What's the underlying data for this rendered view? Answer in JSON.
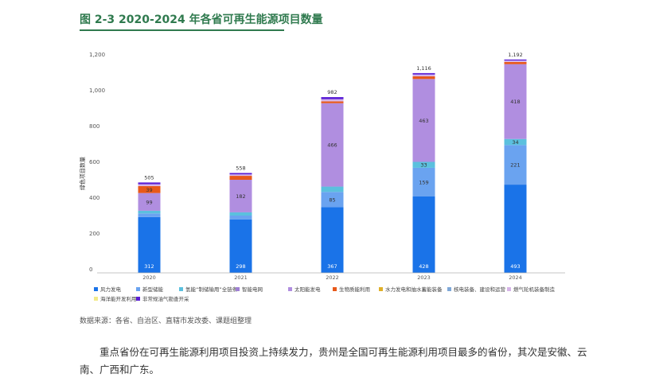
{
  "figure": {
    "title": "图 2-3 2020-2024 年各省可再生能源项目数量",
    "source": "数据来源：各省、自治区、直辖市发改委、课题组整理"
  },
  "body_text": "重点省份在可再生能源利用项目投资上持续发力，贵州是全国可再生能源利用项目最多的省份，其次是安徽、云南、广西和广东。",
  "colors": {
    "wind": "#1a73e8",
    "storage": "#6aa3f0",
    "hydrogen": "#5bc0de",
    "smart_grid": "#9f7fd4",
    "solar": "#b08ee0",
    "biomass": "#e8591a",
    "hydro": "#e0b02a",
    "nuclear": "#7fa8d8",
    "gas_turbine": "#d6b4e8",
    "ocean": "#f2ea8a",
    "unconventional": "#5b1fd6",
    "axis_text": "#555555"
  },
  "chart_data": {
    "type": "bar",
    "stacked": true,
    "categories": [
      "2020",
      "2021",
      "2022",
      "2023",
      "2024"
    ],
    "ylabel": "绿色项目数量",
    "ylim": [
      0,
      1200
    ],
    "yticks": [
      0,
      200,
      400,
      600,
      800,
      1000,
      1200
    ],
    "ytick_labels": [
      "0",
      "200",
      "400",
      "600",
      "800",
      "1,000",
      "1,200"
    ],
    "grid": false,
    "legend": "bottom",
    "totals": [
      505,
      558,
      982,
      1116,
      1192
    ],
    "total_labels": [
      "505",
      "558",
      "982",
      "1,116",
      "1,192"
    ],
    "series": [
      {
        "name": "风力发电",
        "color_key": "wind",
        "values": [
          312,
          298,
          367,
          428,
          493
        ],
        "show_labels": true,
        "label_color": "#ffffff"
      },
      {
        "name": "新型储能",
        "color_key": "storage",
        "values": [
          20,
          22,
          85,
          159,
          221
        ],
        "show_labels": [
          false,
          false,
          true,
          true,
          true
        ],
        "label_color": "#333333"
      },
      {
        "name": "氢能“制储输用”全链条",
        "color_key": "hydrogen",
        "values": [
          15,
          18,
          30,
          33,
          34
        ],
        "show_labels": [
          false,
          false,
          false,
          true,
          true
        ],
        "label_color": "#333333"
      },
      {
        "name": "智能电网",
        "color_key": "smart_grid",
        "values": [
          0,
          0,
          0,
          0,
          0
        ],
        "show_labels": false,
        "label_color": "#333333"
      },
      {
        "name": "太阳能发电",
        "color_key": "solar",
        "values": [
          99,
          182,
          466,
          463,
          418
        ],
        "show_labels": true,
        "label_color": "#333333"
      },
      {
        "name": "生物质能利用",
        "color_key": "biomass",
        "values": [
          39,
          22,
          10,
          15,
          12
        ],
        "show_labels": [
          true,
          false,
          false,
          false,
          false
        ],
        "label_color": "#333333"
      },
      {
        "name": "水力发电和抽水蓄能装备",
        "color_key": "hydro",
        "values": [
          0,
          0,
          0,
          0,
          0
        ],
        "show_labels": false,
        "label_color": "#333333"
      },
      {
        "name": "核电装备、建设和运营",
        "color_key": "nuclear",
        "values": [
          0,
          0,
          0,
          0,
          0
        ],
        "show_labels": false,
        "label_color": "#333333"
      },
      {
        "name": "燃气轮机装备制造",
        "color_key": "gas_turbine",
        "values": [
          10,
          8,
          12,
          10,
          8
        ],
        "show_labels": false,
        "label_color": "#333333"
      },
      {
        "name": "海洋能开发利用",
        "color_key": "ocean",
        "values": [
          0,
          0,
          0,
          0,
          0
        ],
        "show_labels": false,
        "label_color": "#333333"
      },
      {
        "name": "非常规油气勘查开采",
        "color_key": "unconventional",
        "values": [
          10,
          8,
          12,
          8,
          6
        ],
        "show_labels": false,
        "label_color": "#333333"
      }
    ]
  }
}
